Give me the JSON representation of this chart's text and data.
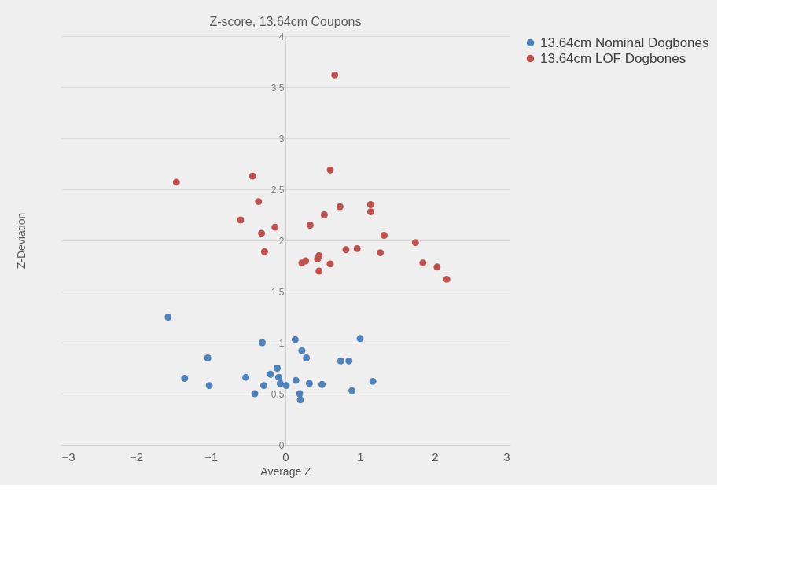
{
  "chart_data": {
    "type": "scatter",
    "title": "Z-score, 13.64cm Coupons",
    "xlabel": "Average Z",
    "ylabel": "Z-Deviation",
    "xlim": [
      -3,
      3
    ],
    "xticks": [
      -3,
      -2,
      -1,
      0,
      1,
      2,
      3
    ],
    "ylim": [
      0,
      4
    ],
    "yticks": [
      0,
      0.5,
      1,
      1.5,
      2,
      2.5,
      3,
      3.5,
      4
    ],
    "grid": "y",
    "legend": "right",
    "marker": "circle",
    "series": [
      {
        "name": "13.64cm Nominal Dogbones",
        "color": "#4f81bd",
        "x": [
          -1.57,
          -0.31,
          0.13,
          1.0,
          0.22,
          0.28,
          -1.04,
          0.74,
          0.85,
          -1.35,
          -0.53,
          -1.02,
          -0.11,
          -0.2,
          -0.09,
          -0.07,
          0.01,
          0.14,
          0.32,
          0.49,
          1.17,
          0.89,
          -0.29,
          -0.41,
          0.19,
          0.2
        ],
        "values": [
          1.25,
          1.0,
          1.03,
          1.04,
          0.92,
          0.85,
          0.85,
          0.82,
          0.82,
          0.65,
          0.66,
          0.58,
          0.75,
          0.69,
          0.66,
          0.6,
          0.58,
          0.63,
          0.6,
          0.59,
          0.62,
          0.53,
          0.58,
          0.5,
          0.5,
          0.44
        ]
      },
      {
        "name": "13.64cm LOF Dogbones",
        "color": "#c0504d",
        "x": [
          0.66,
          0.6,
          -1.46,
          -0.44,
          -0.36,
          -0.6,
          -0.32,
          -0.14,
          -0.28,
          0.33,
          0.52,
          0.73,
          1.14,
          1.14,
          1.32,
          1.74,
          1.27,
          0.96,
          0.81,
          0.22,
          0.27,
          0.45,
          0.43,
          0.6,
          0.45,
          1.84,
          2.03,
          2.16
        ],
        "values": [
          3.62,
          2.69,
          2.57,
          2.63,
          2.38,
          2.2,
          2.07,
          2.13,
          1.89,
          2.15,
          2.25,
          2.33,
          2.35,
          2.28,
          2.05,
          1.98,
          1.88,
          1.92,
          1.91,
          1.78,
          1.8,
          1.85,
          1.82,
          1.77,
          1.7,
          1.78,
          1.74,
          1.62
        ]
      }
    ]
  }
}
